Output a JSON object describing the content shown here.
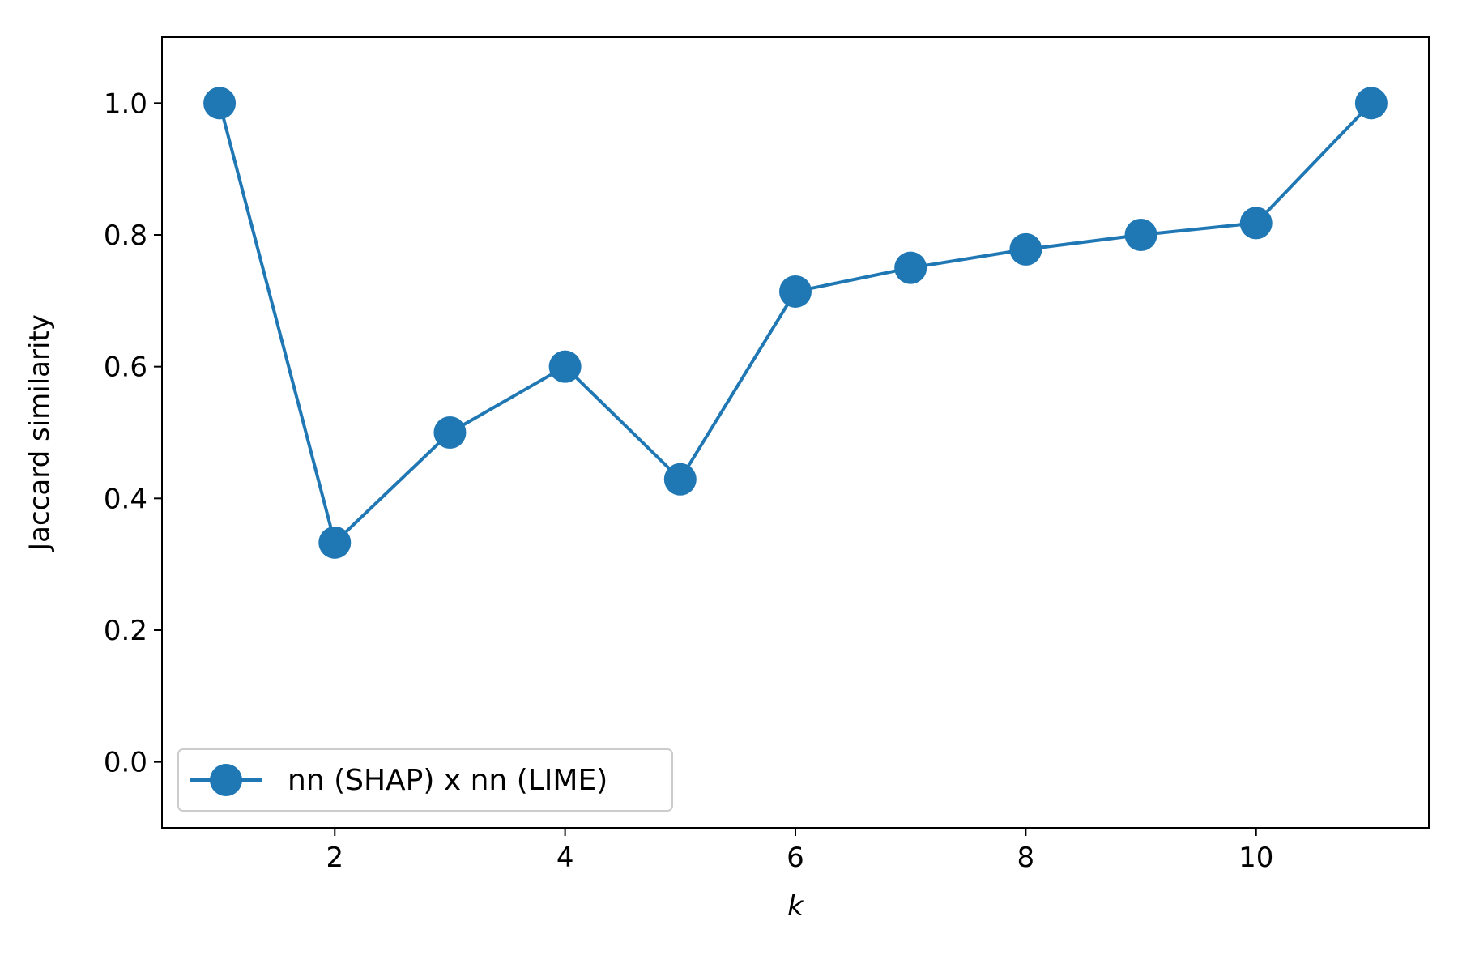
{
  "chart_data": {
    "type": "line",
    "title": "",
    "xlabel": "k",
    "ylabel": "Jaccard similarity",
    "xlim": [
      0.5,
      11.5
    ],
    "ylim": [
      -0.1,
      1.1
    ],
    "xticks": [
      2,
      4,
      6,
      8,
      10
    ],
    "yticks": [
      0.0,
      0.2,
      0.4,
      0.6,
      0.8,
      1.0
    ],
    "xtick_labels": [
      "2",
      "4",
      "6",
      "8",
      "10"
    ],
    "ytick_labels": [
      "0.0",
      "0.2",
      "0.4",
      "0.6",
      "0.8",
      "1.0"
    ],
    "grid": false,
    "legend_position": "lower-left",
    "series": [
      {
        "name": "nn (SHAP) x nn (LIME)",
        "color": "#1f77b4",
        "marker": "circle",
        "x": [
          1,
          2,
          3,
          4,
          5,
          6,
          7,
          8,
          9,
          10,
          11
        ],
        "y": [
          1.0,
          0.333,
          0.5,
          0.6,
          0.429,
          0.714,
          0.75,
          0.778,
          0.8,
          0.818,
          1.0
        ]
      }
    ]
  }
}
